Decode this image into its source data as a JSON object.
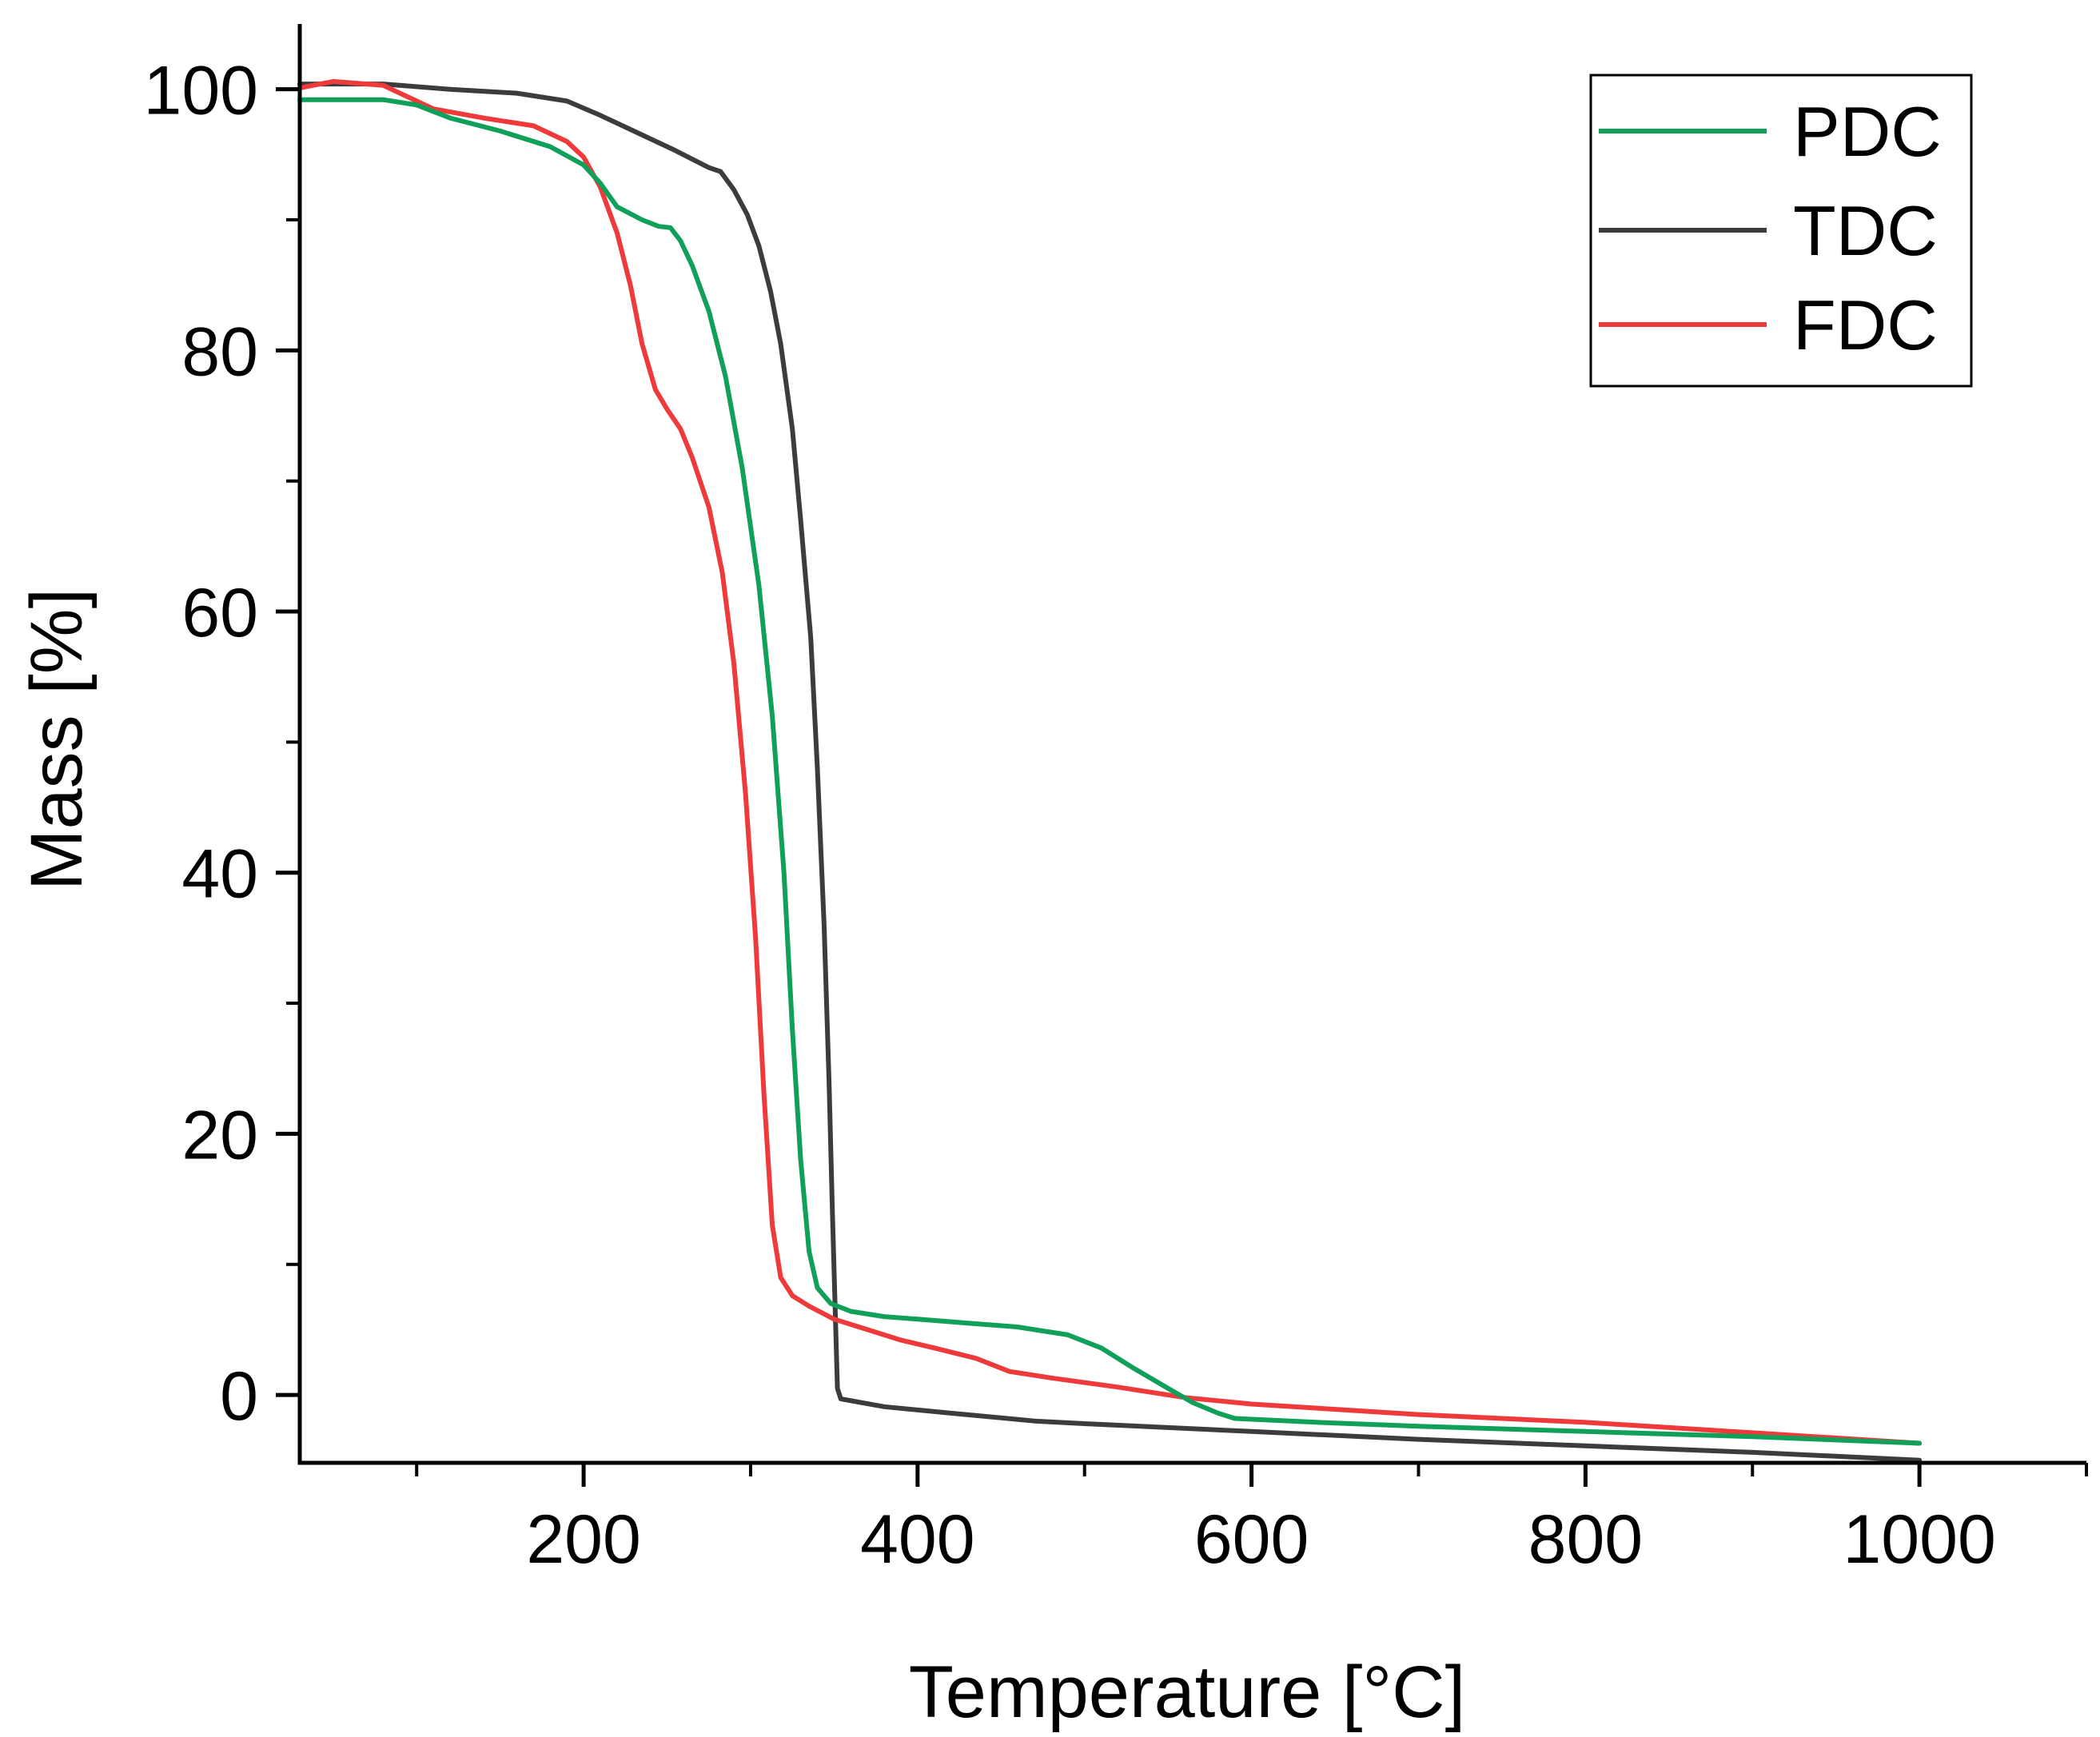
{
  "chart_data": {
    "type": "line",
    "title": "",
    "xlabel": "Temperature [°C]",
    "ylabel": "Mass [%]",
    "xlim": [
      30,
      1100
    ],
    "ylim": [
      -5.2,
      105
    ],
    "x_ticks": [
      200,
      400,
      600,
      800,
      1000
    ],
    "x_minor_ticks": [
      100,
      300,
      500,
      700,
      900,
      1100
    ],
    "y_ticks": [
      0,
      20,
      40,
      60,
      80,
      100
    ],
    "y_minor_ticks": [
      10,
      30,
      50,
      70,
      90
    ],
    "grid": false,
    "legend_position": "top-right",
    "series": [
      {
        "name": "PDC",
        "color": "#10a05a",
        "points": [
          [
            30,
            99.2
          ],
          [
            80,
            99.2
          ],
          [
            100,
            98.8
          ],
          [
            120,
            97.8
          ],
          [
            150,
            96.8
          ],
          [
            180,
            95.6
          ],
          [
            200,
            94.2
          ],
          [
            210,
            92.8
          ],
          [
            220,
            91.0
          ],
          [
            235,
            90.0
          ],
          [
            245,
            89.5
          ],
          [
            252,
            89.4
          ],
          [
            258,
            88.4
          ],
          [
            265,
            86.5
          ],
          [
            275,
            83.0
          ],
          [
            285,
            78.0
          ],
          [
            295,
            71.0
          ],
          [
            305,
            62.0
          ],
          [
            313,
            52.0
          ],
          [
            320,
            40.0
          ],
          [
            325,
            28.0
          ],
          [
            330,
            18.0
          ],
          [
            335,
            11.0
          ],
          [
            340,
            8.2
          ],
          [
            348,
            7.0
          ],
          [
            360,
            6.4
          ],
          [
            380,
            6.0
          ],
          [
            400,
            5.8
          ],
          [
            430,
            5.5
          ],
          [
            460,
            5.2
          ],
          [
            490,
            4.6
          ],
          [
            510,
            3.6
          ],
          [
            530,
            2.0
          ],
          [
            550,
            0.5
          ],
          [
            565,
            -0.6
          ],
          [
            580,
            -1.4
          ],
          [
            590,
            -1.8
          ],
          [
            640,
            -2.1
          ],
          [
            700,
            -2.4
          ],
          [
            800,
            -2.8
          ],
          [
            900,
            -3.2
          ],
          [
            1000,
            -3.7
          ]
        ]
      },
      {
        "name": "TDC",
        "color": "#3c3c3c",
        "points": [
          [
            30,
            100.4
          ],
          [
            80,
            100.4
          ],
          [
            120,
            100.0
          ],
          [
            160,
            99.7
          ],
          [
            190,
            99.1
          ],
          [
            210,
            98.0
          ],
          [
            230,
            96.8
          ],
          [
            255,
            95.3
          ],
          [
            275,
            94.0
          ],
          [
            282,
            93.7
          ],
          [
            290,
            92.3
          ],
          [
            298,
            90.4
          ],
          [
            305,
            88.0
          ],
          [
            312,
            84.5
          ],
          [
            318,
            80.5
          ],
          [
            325,
            74.0
          ],
          [
            330,
            67.0
          ],
          [
            336,
            58.0
          ],
          [
            340,
            48.0
          ],
          [
            344,
            36.0
          ],
          [
            347,
            24.0
          ],
          [
            349,
            14.0
          ],
          [
            351,
            5.0
          ],
          [
            352,
            0.5
          ],
          [
            354,
            -0.3
          ],
          [
            380,
            -0.9
          ],
          [
            420,
            -1.4
          ],
          [
            470,
            -2.0
          ],
          [
            500,
            -2.2
          ],
          [
            600,
            -2.8
          ],
          [
            700,
            -3.4
          ],
          [
            800,
            -3.9
          ],
          [
            900,
            -4.4
          ],
          [
            1000,
            -5.0
          ]
        ]
      },
      {
        "name": "FDC",
        "color": "#ee3a3a",
        "points": [
          [
            30,
            100.1
          ],
          [
            50,
            100.6
          ],
          [
            80,
            100.3
          ],
          [
            110,
            98.5
          ],
          [
            140,
            97.8
          ],
          [
            170,
            97.2
          ],
          [
            190,
            96.0
          ],
          [
            200,
            94.8
          ],
          [
            210,
            92.5
          ],
          [
            220,
            89.0
          ],
          [
            228,
            85.0
          ],
          [
            235,
            80.5
          ],
          [
            243,
            77.0
          ],
          [
            250,
            75.5
          ],
          [
            258,
            74.0
          ],
          [
            265,
            71.8
          ],
          [
            275,
            68.0
          ],
          [
            283,
            63.0
          ],
          [
            290,
            56.0
          ],
          [
            297,
            46.0
          ],
          [
            303,
            35.0
          ],
          [
            308,
            23.0
          ],
          [
            313,
            13.0
          ],
          [
            318,
            9.0
          ],
          [
            325,
            7.6
          ],
          [
            335,
            6.8
          ],
          [
            350,
            5.8
          ],
          [
            370,
            5.0
          ],
          [
            390,
            4.2
          ],
          [
            410,
            3.6
          ],
          [
            435,
            2.8
          ],
          [
            455,
            1.8
          ],
          [
            480,
            1.3
          ],
          [
            520,
            0.6
          ],
          [
            560,
            -0.2
          ],
          [
            600,
            -0.7
          ],
          [
            700,
            -1.5
          ],
          [
            800,
            -2.1
          ],
          [
            900,
            -2.9
          ],
          [
            1000,
            -3.7
          ]
        ]
      }
    ]
  }
}
